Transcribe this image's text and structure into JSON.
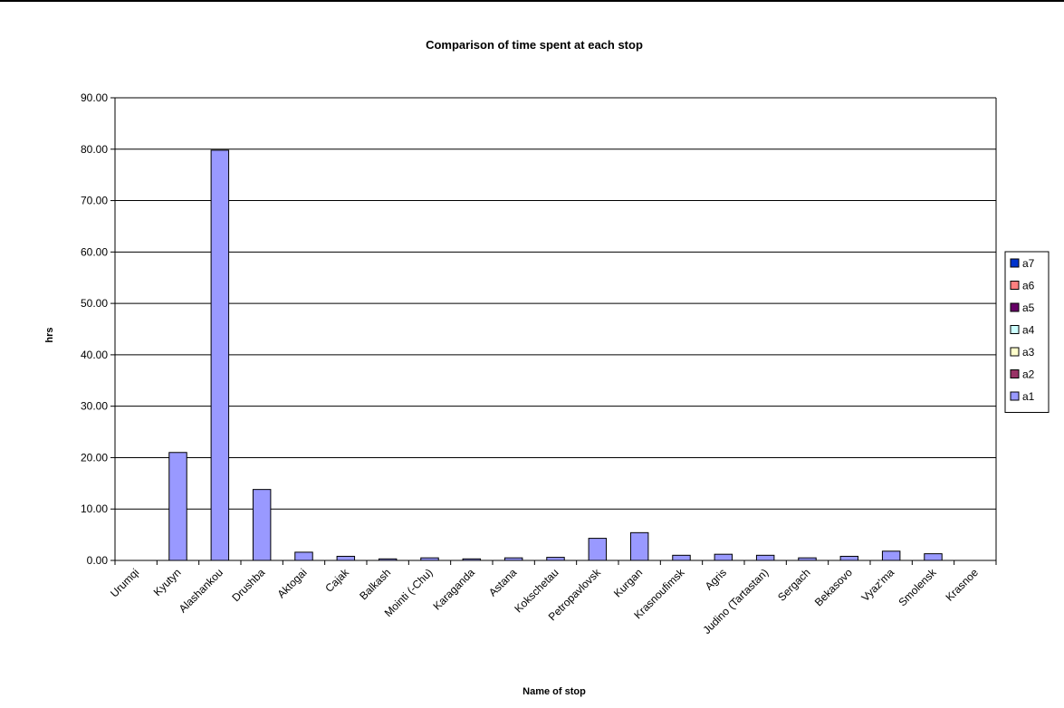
{
  "chart_data": {
    "type": "bar",
    "title": "Comparison of time spent at each stop",
    "xlabel": "Name of stop",
    "ylabel": "hrs",
    "ylim": [
      0,
      90
    ],
    "ytick_step": 10,
    "ytick_labels": [
      "0.00",
      "10.00",
      "20.00",
      "30.00",
      "40.00",
      "50.00",
      "60.00",
      "70.00",
      "80.00",
      "90.00"
    ],
    "grid": true,
    "legend_position": "right",
    "categories": [
      "Urumqi",
      "Kyutyn",
      "Alashankou",
      "Drushba",
      "Aktogai",
      "Cajak",
      "Balkash",
      "Mointi (-Chu)",
      "Karaganda",
      "Astana",
      "Kokschetau",
      "Petropavlovsk",
      "Kurgan",
      "Krasnoufimsk",
      "Agris",
      "Judino (Tartastan)",
      "Sergach",
      "Bekasovo",
      "Vyaz'ma",
      "Smolensk",
      "Krasnoe"
    ],
    "legend": [
      {
        "name": "a7",
        "color": "#0033cc"
      },
      {
        "name": "a6",
        "color": "#ff8080"
      },
      {
        "name": "a5",
        "color": "#660066"
      },
      {
        "name": "a4",
        "color": "#ccffff"
      },
      {
        "name": "a3",
        "color": "#ffffcc"
      },
      {
        "name": "a2",
        "color": "#993366"
      },
      {
        "name": "a1",
        "color": "#9999ff"
      }
    ],
    "series": [
      {
        "name": "a1",
        "color": "#9999ff",
        "values": [
          0,
          21.0,
          79.8,
          13.8,
          1.6,
          0.8,
          0.3,
          0.5,
          0.3,
          0.5,
          0.6,
          4.3,
          5.4,
          1.0,
          1.2,
          1.0,
          0.5,
          0.8,
          1.8,
          1.3,
          0
        ]
      }
    ]
  }
}
